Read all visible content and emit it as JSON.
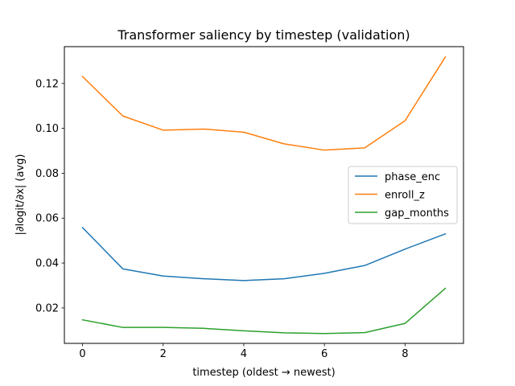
{
  "chart_data": {
    "type": "line",
    "title": "Transformer saliency by timestep (validation)",
    "xlabel": "timestep (oldest → newest)",
    "ylabel": "|∂logit/∂x| (avg)",
    "x": [
      0,
      1,
      2,
      3,
      4,
      5,
      6,
      7,
      8,
      9
    ],
    "xlim": [
      -0.45,
      9.45
    ],
    "ylim": [
      0.0042,
      0.1364
    ],
    "xticks": [
      0,
      2,
      4,
      6,
      8
    ],
    "yticks": [
      0.02,
      0.04,
      0.06,
      0.08,
      0.1,
      0.12
    ],
    "ytick_labels": [
      "0.02",
      "0.04",
      "0.06",
      "0.08",
      "0.10",
      "0.12"
    ],
    "grid": false,
    "legend_position": "center-right",
    "series": [
      {
        "name": "phase_enc",
        "color": "#1f77b4",
        "values": [
          0.0558,
          0.0374,
          0.0342,
          0.033,
          0.0322,
          0.033,
          0.0354,
          0.0389,
          0.0462,
          0.053
        ]
      },
      {
        "name": "enroll_z",
        "color": "#ff7f0e",
        "values": [
          0.1231,
          0.1055,
          0.0992,
          0.0997,
          0.0983,
          0.0931,
          0.0903,
          0.0913,
          0.1034,
          0.1318
        ]
      },
      {
        "name": "gap_months",
        "color": "#2ca02c",
        "values": [
          0.0147,
          0.0113,
          0.0113,
          0.0109,
          0.0098,
          0.0089,
          0.0086,
          0.009,
          0.0131,
          0.0287
        ]
      }
    ]
  }
}
